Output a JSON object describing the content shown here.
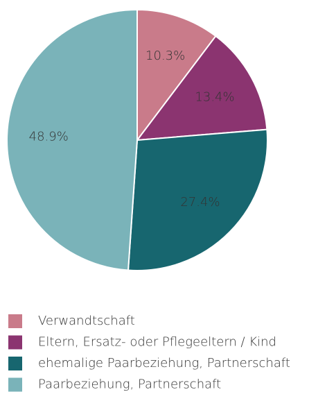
{
  "chart_data": {
    "type": "pie",
    "categories": [
      "Verwandtschaft",
      "Eltern, Ersatz- oder Pflegeeltern / Kind",
      "ehemalige Paarbeziehung, Partnerschaft",
      "Paarbeziehung, Partnerschaft"
    ],
    "values": [
      10.3,
      13.4,
      27.4,
      48.9
    ],
    "value_labels": [
      "10.3%",
      "13.4%",
      "27.4%",
      "48.9%"
    ],
    "colors": [
      "#c97b8a",
      "#8b3470",
      "#17666f",
      "#7ab3b9"
    ],
    "legend": "bottom"
  }
}
